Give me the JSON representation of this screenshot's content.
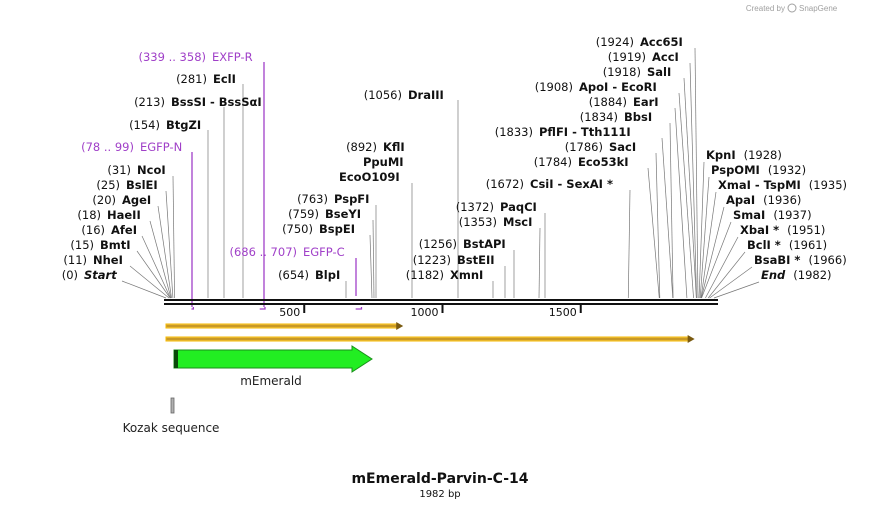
{
  "credit": {
    "prefix": "Created by",
    "brand": "SnapGene"
  },
  "title": "mEmerald-Parvin-C-14",
  "length_label": "1982 bp",
  "total_bp": 1982,
  "ruler_ticks": [
    {
      "value": 500,
      "label": "500"
    },
    {
      "value": 1000,
      "label": "1000"
    },
    {
      "value": 1500,
      "label": "1500"
    }
  ],
  "left_sites": [
    {
      "pos_label": "(339 .. 358)",
      "name": "EXFP-R",
      "bp": 358,
      "kind": "primer"
    },
    {
      "pos_label": "(281)",
      "name": "EclI",
      "bp": 281
    },
    {
      "pos_label": "(213)",
      "name": "BssSI  -  BssSαI",
      "bp": 213
    },
    {
      "pos_label": "(154)",
      "name": "BtgZI",
      "bp": 154
    },
    {
      "pos_label": "(78 .. 99)",
      "name": "EGFP-N",
      "bp": 99,
      "kind": "primer"
    },
    {
      "pos_label": "(31)",
      "name": "NcoI",
      "bp": 31
    },
    {
      "pos_label": "(25)",
      "name": "BslEI",
      "bp": 25
    },
    {
      "pos_label": "(20)",
      "name": "AgeI",
      "bp": 20
    },
    {
      "pos_label": "(18)",
      "name": "HaeII",
      "bp": 18
    },
    {
      "pos_label": "(16)",
      "name": "AfeI",
      "bp": 16
    },
    {
      "pos_label": "(15)",
      "name": "BmtI",
      "bp": 15
    },
    {
      "pos_label": "(11)",
      "name": "NheI",
      "bp": 11
    },
    {
      "pos_label": "(0)",
      "name": "Start",
      "bp": 0,
      "kind": "end"
    }
  ],
  "mid_sites": [
    {
      "pos_label": "(892)",
      "name": "KflI",
      "bp": 892
    },
    {
      "pos_label": "",
      "name": "PpuMI",
      "bp": 892
    },
    {
      "pos_label": "",
      "name": "EcoO109I",
      "bp": 892
    },
    {
      "pos_label": "(763)",
      "name": "PspFI",
      "bp": 763
    },
    {
      "pos_label": "(759)",
      "name": "BseYI",
      "bp": 759
    },
    {
      "pos_label": "(750)",
      "name": "BspEI",
      "bp": 750
    },
    {
      "pos_label": "(686 .. 707)",
      "name": "EGFP-C",
      "bp": 707,
      "kind": "primer"
    },
    {
      "pos_label": "(654)",
      "name": "BlpI",
      "bp": 654
    },
    {
      "pos_label": "(1056)",
      "name": "DraIII",
      "bp": 1056
    },
    {
      "pos_label": "(1372)",
      "name": "PaqCI",
      "bp": 1372
    },
    {
      "pos_label": "(1353)",
      "name": "MscI",
      "bp": 1353
    },
    {
      "pos_label": "(1256)",
      "name": "BstAPI",
      "bp": 1256
    },
    {
      "pos_label": "(1223)",
      "name": "BstEII",
      "bp": 1223
    },
    {
      "pos_label": "(1182)",
      "name": "XmnI",
      "bp": 1182
    }
  ],
  "right_top_sites": [
    {
      "pos_label": "(1924)",
      "name": "Acc65I",
      "bp": 1924
    },
    {
      "pos_label": "(1919)",
      "name": "AccI",
      "bp": 1919
    },
    {
      "pos_label": "(1918)",
      "name": "SalI",
      "bp": 1918
    },
    {
      "pos_label": "(1908)",
      "name": "ApoI  -  EcoRI",
      "bp": 1908
    },
    {
      "pos_label": "(1884)",
      "name": "EarI",
      "bp": 1884
    },
    {
      "pos_label": "(1834)",
      "name": "BbsI",
      "bp": 1834
    },
    {
      "pos_label": "(1833)",
      "name": "PflFI  -  Tth111I",
      "bp": 1833
    },
    {
      "pos_label": "(1786)",
      "name": "SacI",
      "bp": 1786
    },
    {
      "pos_label": "(1784)",
      "name": "Eco53kI",
      "bp": 1784
    },
    {
      "pos_label": "(1672)",
      "name": "CsiI  -  SexAI *",
      "bp": 1672
    }
  ],
  "right_sites": [
    {
      "pos_label": "(1928)",
      "name": "KpnI",
      "bp": 1928
    },
    {
      "pos_label": "(1932)",
      "name": "PspOMI",
      "bp": 1932
    },
    {
      "pos_label": "(1935)",
      "name": "XmaI  -  TspMI",
      "bp": 1935
    },
    {
      "pos_label": "(1936)",
      "name": "ApaI",
      "bp": 1936
    },
    {
      "pos_label": "(1937)",
      "name": "SmaI",
      "bp": 1937
    },
    {
      "pos_label": "(1951)",
      "name": "XbaI *",
      "bp": 1951
    },
    {
      "pos_label": "(1961)",
      "name": "BclI *",
      "bp": 1961
    },
    {
      "pos_label": "(1966)",
      "name": "BsaBI *",
      "bp": 1966
    },
    {
      "pos_label": "(1982)",
      "name": "End",
      "bp": 1982,
      "kind": "end"
    }
  ],
  "features": [
    {
      "name": "mEmerald",
      "start": 3,
      "end": 720,
      "color": "#22ee22"
    },
    {
      "name": "Kozak sequence",
      "start": 1,
      "end": 10,
      "color": "#b0b0b0"
    }
  ],
  "orf_bars": [
    {
      "start": 0,
      "end": 858
    },
    {
      "start": 0,
      "end": 1912
    }
  ]
}
